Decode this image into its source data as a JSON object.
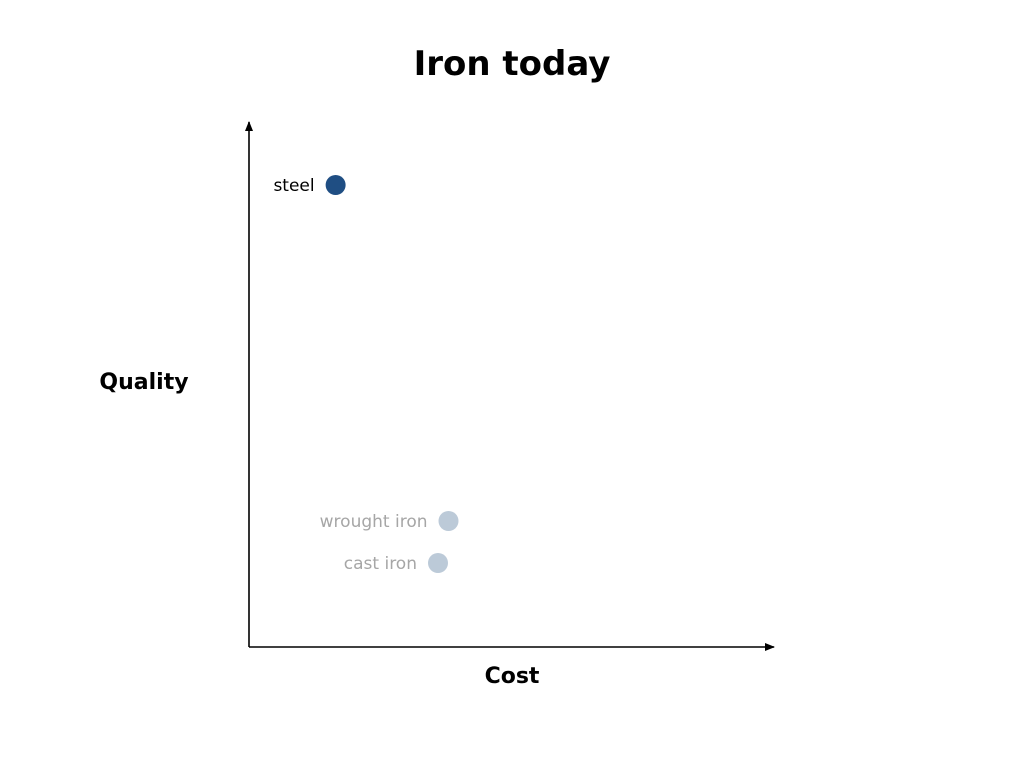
{
  "chart_data": {
    "type": "scatter",
    "title": "Iron today",
    "xlabel": "Cost",
    "ylabel": "Quality",
    "xlim": [
      0,
      10
    ],
    "ylim": [
      0,
      10
    ],
    "grid": false,
    "ticks": false,
    "points": [
      {
        "label": "steel",
        "x": 1.65,
        "y": 8.8,
        "color": "#1f4e83",
        "label_color": "#000000"
      },
      {
        "label": "wrought iron",
        "x": 3.8,
        "y": 2.4,
        "color": "#bccad8",
        "label_color": "#a6a6a6"
      },
      {
        "label": "cast iron",
        "x": 3.6,
        "y": 1.6,
        "color": "#bccad8",
        "label_color": "#a6a6a6"
      }
    ]
  }
}
